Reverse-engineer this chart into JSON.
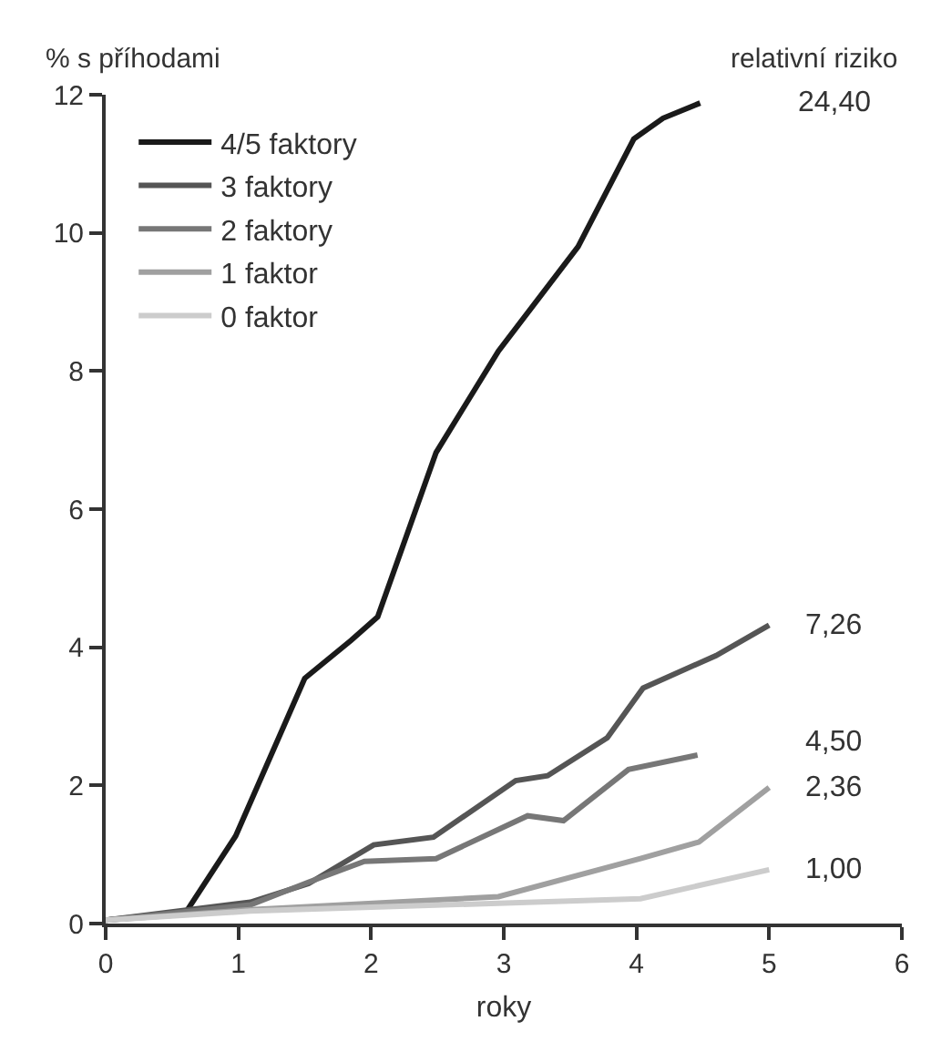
{
  "chart_data": {
    "type": "line",
    "ylabel": "% s příhodami",
    "xlabel": "roky",
    "xlim": [
      0,
      6
    ],
    "xticks": [
      0,
      1,
      2,
      3,
      4,
      5,
      6
    ],
    "ylim": [
      0,
      12
    ],
    "yticks": [
      0,
      2,
      4,
      6,
      8,
      10,
      12
    ],
    "legend": "top left",
    "marker": "none",
    "line_style": "solid",
    "series": [
      {
        "name": "4/5 faktory",
        "color": "#1a1a1a",
        "x": [
          0,
          0.6,
          0.98,
          1.5,
          1.85,
          2.05,
          2.49,
          2.96,
          3.56,
          3.98,
          4.2,
          4.48
        ],
        "values": [
          0.05,
          0.15,
          1.27,
          3.55,
          4.1,
          4.44,
          6.82,
          8.29,
          9.8,
          11.36,
          11.66,
          11.88
        ]
      },
      {
        "name": "3 faktory",
        "color": "#555555",
        "x": [
          0,
          1.09,
          1.53,
          2.02,
          2.47,
          3.09,
          3.33,
          3.78,
          4.05,
          4.6,
          5.0
        ],
        "values": [
          0.05,
          0.31,
          0.58,
          1.14,
          1.25,
          2.07,
          2.14,
          2.69,
          3.41,
          3.88,
          4.32
        ]
      },
      {
        "name": "2 faktory",
        "color": "#777777",
        "x": [
          0,
          1.09,
          1.53,
          1.95,
          2.49,
          3.18,
          3.45,
          3.94,
          4.46
        ],
        "values": [
          0.05,
          0.27,
          0.6,
          0.9,
          0.94,
          1.56,
          1.49,
          2.23,
          2.44
        ]
      },
      {
        "name": "1 faktor",
        "color": "#a0a0a0",
        "x": [
          0,
          1.09,
          2.96,
          4.03,
          4.47,
          5.0
        ],
        "values": [
          0.05,
          0.2,
          0.39,
          0.94,
          1.18,
          1.97
        ]
      },
      {
        "name": "0 faktor",
        "color": "#cccccc",
        "x": [
          0,
          1.09,
          4.03,
          5.0
        ],
        "values": [
          0.05,
          0.18,
          0.36,
          0.78
        ]
      }
    ],
    "annotations": [
      "relativní riziko",
      "24,40",
      "7,26",
      "4,50",
      "2,36",
      "1,00"
    ]
  }
}
